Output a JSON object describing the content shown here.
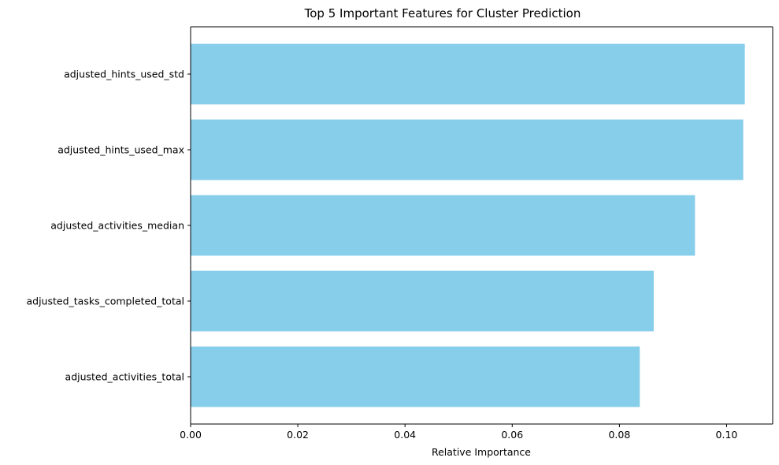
{
  "chart_data": {
    "type": "bar",
    "orientation": "horizontal",
    "title": "Top 5 Important Features for Cluster Prediction",
    "xlabel": "Relative Importance",
    "ylabel": "",
    "categories": [
      "adjusted_hints_used_std",
      "adjusted_hints_used_max",
      "adjusted_activities_median",
      "adjusted_tasks_completed_total",
      "adjusted_activities_total"
    ],
    "values": [
      0.1034,
      0.1031,
      0.0941,
      0.0864,
      0.0838
    ],
    "xlim": [
      0,
      0.1086
    ],
    "xticks": [
      0.0,
      0.02,
      0.04,
      0.06,
      0.08,
      0.1
    ],
    "xtick_labels": [
      "0.00",
      "0.02",
      "0.04",
      "0.06",
      "0.08",
      "0.10"
    ],
    "bar_color": "#87CEEB",
    "grid": false,
    "legend": "none"
  }
}
